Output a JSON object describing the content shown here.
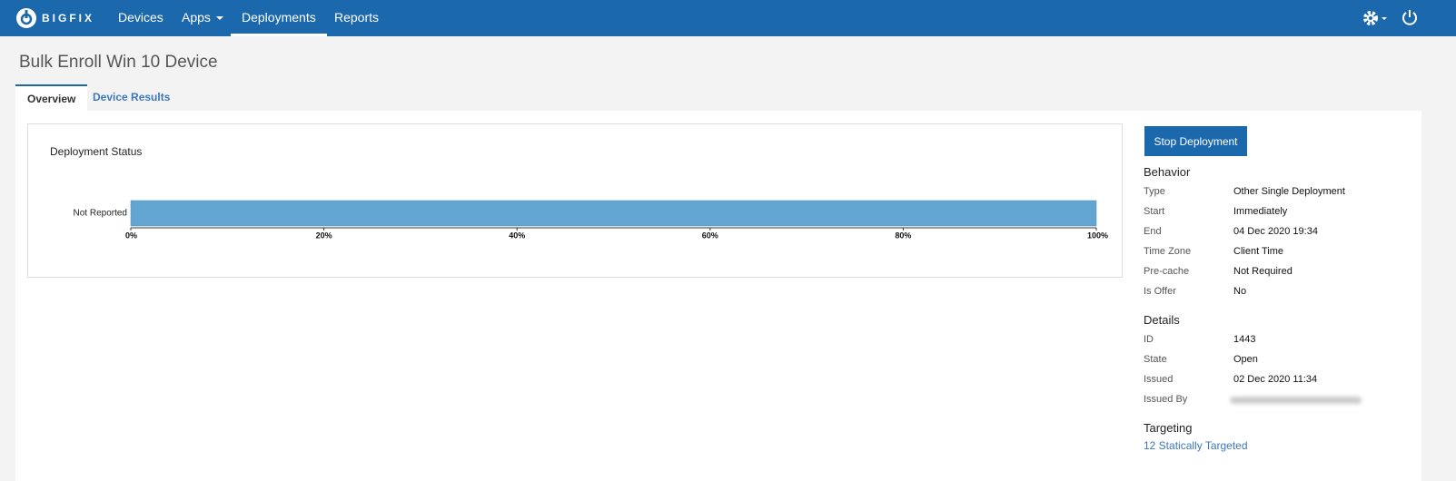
{
  "nav": {
    "brand": "BIGFIX",
    "items": [
      "Devices",
      "Apps",
      "Deployments",
      "Reports"
    ],
    "active": 2
  },
  "page": {
    "title": "Bulk Enroll Win 10 Device",
    "tabs": [
      "Overview",
      "Device Results"
    ],
    "active_tab": 0
  },
  "chart_data": {
    "type": "bar",
    "orientation": "horizontal",
    "title": "Deployment Status",
    "categories": [
      "Not Reported"
    ],
    "values": [
      100
    ],
    "color": "#62a5d0",
    "xlim": [
      0,
      100
    ],
    "xticks": [
      {
        "value": 0,
        "label": "0%"
      },
      {
        "value": 20,
        "label": "20%"
      },
      {
        "value": 40,
        "label": "40%"
      },
      {
        "value": 60,
        "label": "60%"
      },
      {
        "value": 80,
        "label": "80%"
      },
      {
        "value": 100,
        "label": "100%"
      }
    ]
  },
  "sidebar": {
    "button": "Stop Deployment",
    "sections": [
      {
        "title": "Behavior",
        "rows": [
          {
            "label": "Type",
            "value": "Other Single Deployment"
          },
          {
            "label": "Start",
            "value": "Immediately"
          },
          {
            "label": "End",
            "value": "04 Dec 2020 19:34"
          },
          {
            "label": "Time Zone",
            "value": "Client Time"
          },
          {
            "label": "Pre-cache",
            "value": "Not Required"
          },
          {
            "label": "Is Offer",
            "value": "No"
          }
        ]
      },
      {
        "title": "Details",
        "rows": [
          {
            "label": "ID",
            "value": "1443"
          },
          {
            "label": "State",
            "value": "Open"
          },
          {
            "label": "Issued",
            "value": "02 Dec 2020 11:34"
          },
          {
            "label": "Issued By"
          }
        ]
      },
      {
        "title": "Targeting",
        "link": "12 Statically Targeted"
      }
    ]
  }
}
